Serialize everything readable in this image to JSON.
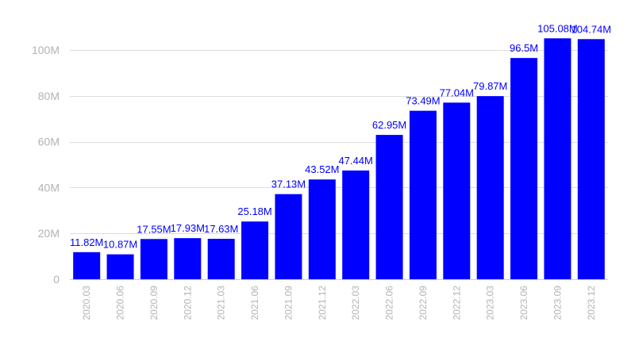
{
  "chart_data": {
    "type": "bar",
    "categories": [
      "2020.03",
      "2020.06",
      "2020.09",
      "2020.12",
      "2021.03",
      "2021.06",
      "2021.09",
      "2021.12",
      "2022.03",
      "2022.06",
      "2022.09",
      "2022.12",
      "2023.03",
      "2023.06",
      "2023.09",
      "2023.12"
    ],
    "values": [
      11.82,
      10.87,
      17.55,
      17.93,
      17.63,
      25.18,
      37.13,
      43.52,
      47.44,
      62.95,
      73.49,
      77.04,
      79.87,
      96.5,
      105.08,
      104.74
    ],
    "data_labels": [
      "11.82M",
      "10.87M",
      "17.55M",
      "17.93M",
      "17.63M",
      "25.18M",
      "37.13M",
      "43.52M",
      "47.44M",
      "62.95M",
      "73.49M",
      "77.04M",
      "79.87M",
      "96.5M",
      "105.08M",
      "104.74M"
    ],
    "y_ticks": [
      0,
      20,
      40,
      60,
      80,
      100
    ],
    "y_tick_labels": [
      "0",
      "20M",
      "40M",
      "60M",
      "80M",
      "100M"
    ],
    "ylim": [
      0,
      100
    ],
    "grid": true,
    "legend": "none",
    "colors": {
      "bar": "#0000ff",
      "data_label": "#0000ff",
      "tick_label": "#b3b3b3",
      "grid": "#dcdcdc"
    }
  }
}
